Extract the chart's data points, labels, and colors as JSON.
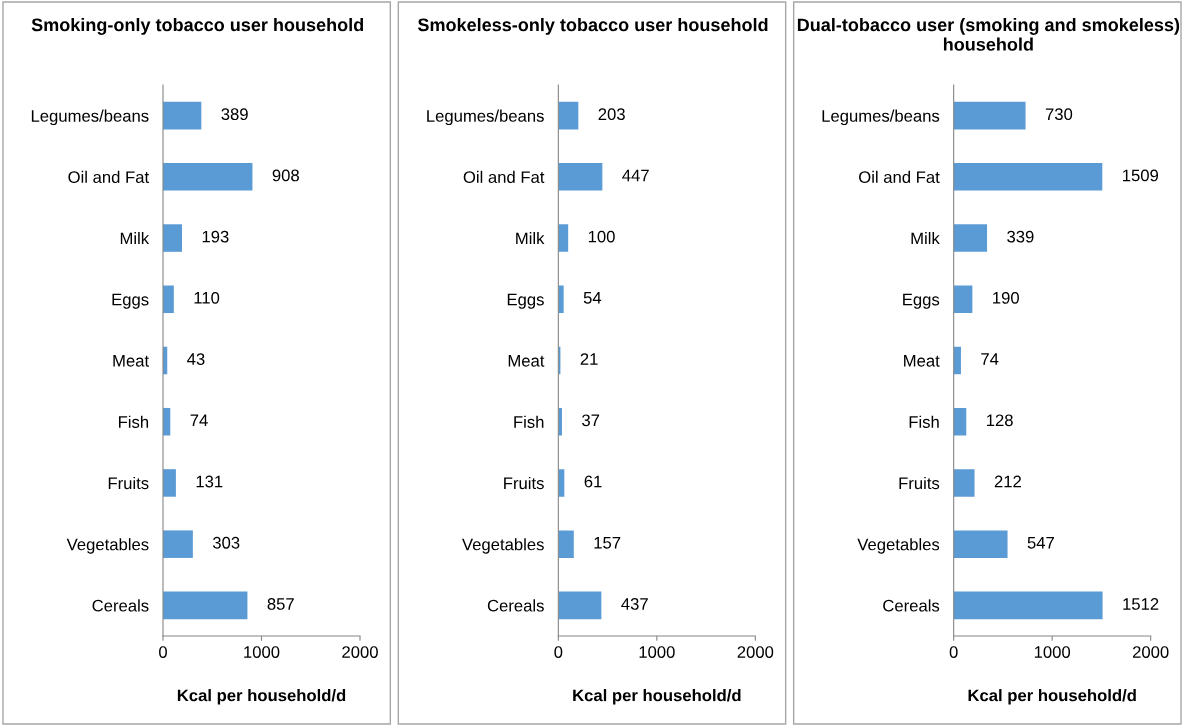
{
  "chart_data": [
    {
      "type": "bar",
      "orientation": "horizontal",
      "title": "Smoking-only tobacco user household",
      "xlabel": "Kcal per household/d",
      "categories": [
        "Legumes/beans",
        "Oil and Fat",
        "Milk",
        "Eggs",
        "Meat",
        "Fish",
        "Fruits",
        "Vegetables",
        "Cereals"
      ],
      "values": [
        389,
        908,
        193,
        110,
        43,
        74,
        131,
        303,
        857
      ],
      "color": "#5b9bd5",
      "xlim": [
        0,
        2000
      ],
      "xticks": [
        0,
        1000,
        2000
      ],
      "data_labels": true,
      "grid": false,
      "legend": false
    },
    {
      "type": "bar",
      "orientation": "horizontal",
      "title": "Smokeless-only tobacco user household",
      "xlabel": "Kcal per household/d",
      "categories": [
        "Legumes/beans",
        "Oil and Fat",
        "Milk",
        "Eggs",
        "Meat",
        "Fish",
        "Fruits",
        "Vegetables",
        "Cereals"
      ],
      "values": [
        203,
        447,
        100,
        54,
        21,
        37,
        61,
        157,
        437
      ],
      "color": "#5b9bd5",
      "xlim": [
        0,
        2000
      ],
      "xticks": [
        0,
        1000,
        2000
      ],
      "data_labels": true,
      "grid": false,
      "legend": false
    },
    {
      "type": "bar",
      "orientation": "horizontal",
      "title": "Dual-tobacco user (smoking and smokeless) household",
      "xlabel": "Kcal per household/d",
      "categories": [
        "Legumes/beans",
        "Oil and Fat",
        "Milk",
        "Eggs",
        "Meat",
        "Fish",
        "Fruits",
        "Vegetables",
        "Cereals"
      ],
      "values": [
        730,
        1509,
        339,
        190,
        74,
        128,
        212,
        547,
        1512
      ],
      "color": "#5b9bd5",
      "xlim": [
        0,
        2000
      ],
      "xticks": [
        0,
        1000,
        2000
      ],
      "data_labels": true,
      "grid": false,
      "legend": false
    }
  ]
}
